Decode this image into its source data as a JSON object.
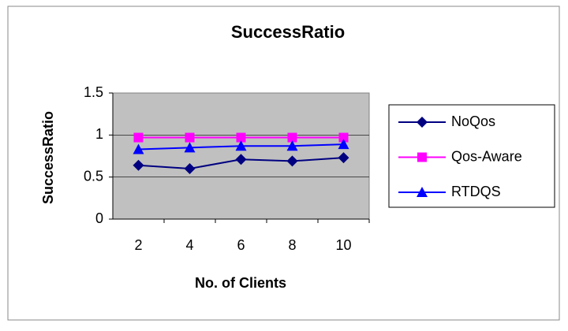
{
  "chart_data": {
    "type": "line",
    "title": "SuccessRatio",
    "x_label": "No. of Clients",
    "y_label": "SuccessRatio",
    "categories": [
      "2",
      "4",
      "6",
      "8",
      "10"
    ],
    "series": [
      {
        "name": "NoQos",
        "color": "#000080",
        "marker": "diamond",
        "values": [
          0.64,
          0.6,
          0.71,
          0.69,
          0.73
        ]
      },
      {
        "name": "Qos-Aware",
        "color": "#ff00ff",
        "marker": "square",
        "values": [
          0.97,
          0.97,
          0.97,
          0.97,
          0.97
        ]
      },
      {
        "name": "RTDQS",
        "color": "#0000ff",
        "marker": "triangle",
        "values": [
          0.83,
          0.85,
          0.87,
          0.87,
          0.89
        ]
      }
    ],
    "ylim": [
      0,
      1.5
    ],
    "yticks": [
      0,
      0.5,
      1,
      1.5
    ],
    "grid": true,
    "legend": "right"
  }
}
